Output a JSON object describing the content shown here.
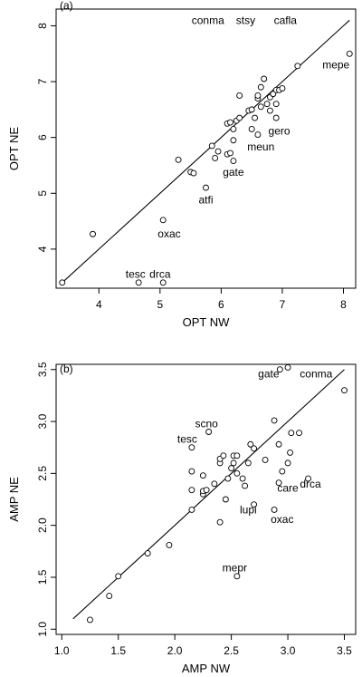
{
  "chart_data": [
    {
      "type": "scatter",
      "panel_label": "(a)",
      "xlabel": "OPT NW",
      "ylabel": "OPT NE",
      "xlim": [
        3.3,
        8.2
      ],
      "ylim": [
        3.3,
        8.3
      ],
      "xticks": [
        4,
        5,
        6,
        7,
        8
      ],
      "yticks": [
        4,
        5,
        6,
        7,
        8
      ],
      "line": {
        "x": [
          3.4,
          8.1
        ],
        "y": [
          3.4,
          8.1
        ]
      },
      "points": [
        {
          "x": 3.4,
          "y": 3.4
        },
        {
          "x": 3.9,
          "y": 4.27
        },
        {
          "x": 4.65,
          "y": 3.4
        },
        {
          "x": 5.05,
          "y": 3.4
        },
        {
          "x": 5.05,
          "y": 4.52
        },
        {
          "x": 5.75,
          "y": 5.1
        },
        {
          "x": 5.3,
          "y": 5.6
        },
        {
          "x": 5.5,
          "y": 5.38
        },
        {
          "x": 5.55,
          "y": 5.36
        },
        {
          "x": 5.85,
          "y": 5.85
        },
        {
          "x": 5.9,
          "y": 5.63
        },
        {
          "x": 5.95,
          "y": 5.75
        },
        {
          "x": 6.1,
          "y": 5.7
        },
        {
          "x": 6.15,
          "y": 5.72
        },
        {
          "x": 6.2,
          "y": 5.58
        },
        {
          "x": 6.2,
          "y": 5.95
        },
        {
          "x": 6.2,
          "y": 6.15
        },
        {
          "x": 6.1,
          "y": 6.25
        },
        {
          "x": 6.15,
          "y": 6.27
        },
        {
          "x": 6.25,
          "y": 6.3
        },
        {
          "x": 6.3,
          "y": 6.75
        },
        {
          "x": 6.3,
          "y": 6.35
        },
        {
          "x": 6.45,
          "y": 6.48
        },
        {
          "x": 6.5,
          "y": 6.5
        },
        {
          "x": 6.55,
          "y": 6.35
        },
        {
          "x": 6.5,
          "y": 6.15
        },
        {
          "x": 6.6,
          "y": 6.05
        },
        {
          "x": 6.65,
          "y": 6.55
        },
        {
          "x": 6.6,
          "y": 6.7
        },
        {
          "x": 6.6,
          "y": 6.75
        },
        {
          "x": 6.65,
          "y": 6.9
        },
        {
          "x": 6.7,
          "y": 7.05
        },
        {
          "x": 6.75,
          "y": 6.6
        },
        {
          "x": 6.8,
          "y": 6.48
        },
        {
          "x": 6.8,
          "y": 6.72
        },
        {
          "x": 6.85,
          "y": 6.78
        },
        {
          "x": 6.9,
          "y": 6.85
        },
        {
          "x": 6.9,
          "y": 6.6
        },
        {
          "x": 6.9,
          "y": 6.35
        },
        {
          "x": 6.95,
          "y": 6.85
        },
        {
          "x": 7.0,
          "y": 6.88
        },
        {
          "x": 7.25,
          "y": 7.28
        },
        {
          "x": 8.1,
          "y": 7.5
        }
      ],
      "annotations": [
        {
          "text": "conma",
          "x": 6.05,
          "y": 8.1,
          "anchor": "end"
        },
        {
          "text": "stsy",
          "x": 6.4,
          "y": 8.1,
          "anchor": "middle"
        },
        {
          "text": "cafla",
          "x": 7.05,
          "y": 8.1,
          "anchor": "middle"
        },
        {
          "text": "mepe",
          "x": 8.1,
          "y": 7.3,
          "anchor": "end"
        },
        {
          "text": "gero",
          "x": 6.95,
          "y": 6.12,
          "anchor": "middle"
        },
        {
          "text": "meun",
          "x": 6.65,
          "y": 5.83,
          "anchor": "middle"
        },
        {
          "text": "gate",
          "x": 6.2,
          "y": 5.38,
          "anchor": "middle"
        },
        {
          "text": "atfi",
          "x": 5.75,
          "y": 4.88,
          "anchor": "middle"
        },
        {
          "text": "oxac",
          "x": 5.15,
          "y": 4.27,
          "anchor": "middle"
        },
        {
          "text": "tesc",
          "x": 4.6,
          "y": 3.55,
          "anchor": "middle"
        },
        {
          "text": "drca",
          "x": 5.0,
          "y": 3.55,
          "anchor": "middle"
        }
      ]
    },
    {
      "type": "scatter",
      "panel_label": "(b)",
      "xlabel": "AMP NW",
      "ylabel": "AMP NE",
      "xlim": [
        0.95,
        3.6
      ],
      "ylim": [
        0.95,
        3.55
      ],
      "xticks": [
        1.0,
        1.5,
        2.0,
        2.5,
        3.0,
        3.5
      ],
      "xtick_labels": [
        "1.0",
        "1.5",
        "2.0",
        "2.5",
        "3.0",
        "3.5"
      ],
      "yticks": [
        1.0,
        1.5,
        2.0,
        2.5,
        3.0,
        3.5
      ],
      "ytick_labels": [
        "1.0",
        "1.5",
        "2.0",
        "2.5",
        "3.0",
        "3.5"
      ],
      "line": {
        "x": [
          1.1,
          3.5
        ],
        "y": [
          1.1,
          3.5
        ]
      },
      "points": [
        {
          "x": 1.25,
          "y": 1.09
        },
        {
          "x": 1.42,
          "y": 1.32
        },
        {
          "x": 1.5,
          "y": 1.51
        },
        {
          "x": 1.76,
          "y": 1.73
        },
        {
          "x": 1.95,
          "y": 1.81
        },
        {
          "x": 2.15,
          "y": 2.15
        },
        {
          "x": 2.15,
          "y": 2.34
        },
        {
          "x": 2.15,
          "y": 2.52
        },
        {
          "x": 2.15,
          "y": 2.75
        },
        {
          "x": 2.25,
          "y": 2.3
        },
        {
          "x": 2.25,
          "y": 2.33
        },
        {
          "x": 2.28,
          "y": 2.34
        },
        {
          "x": 2.25,
          "y": 2.48
        },
        {
          "x": 2.3,
          "y": 2.9
        },
        {
          "x": 2.35,
          "y": 2.4
        },
        {
          "x": 2.4,
          "y": 2.03
        },
        {
          "x": 2.4,
          "y": 2.6
        },
        {
          "x": 2.4,
          "y": 2.64
        },
        {
          "x": 2.43,
          "y": 2.67
        },
        {
          "x": 2.45,
          "y": 2.25
        },
        {
          "x": 2.47,
          "y": 2.45
        },
        {
          "x": 2.5,
          "y": 2.55
        },
        {
          "x": 2.52,
          "y": 2.6
        },
        {
          "x": 2.52,
          "y": 2.67
        },
        {
          "x": 2.55,
          "y": 2.67
        },
        {
          "x": 2.55,
          "y": 2.5
        },
        {
          "x": 2.6,
          "y": 2.45
        },
        {
          "x": 2.62,
          "y": 2.38
        },
        {
          "x": 2.65,
          "y": 2.6
        },
        {
          "x": 2.67,
          "y": 2.78
        },
        {
          "x": 2.7,
          "y": 2.2
        },
        {
          "x": 2.7,
          "y": 2.74
        },
        {
          "x": 2.8,
          "y": 2.63
        },
        {
          "x": 2.88,
          "y": 3.01
        },
        {
          "x": 2.88,
          "y": 2.15
        },
        {
          "x": 2.92,
          "y": 2.41
        },
        {
          "x": 2.92,
          "y": 2.78
        },
        {
          "x": 2.95,
          "y": 2.52
        },
        {
          "x": 3.0,
          "y": 2.6
        },
        {
          "x": 3.02,
          "y": 2.7
        },
        {
          "x": 3.03,
          "y": 2.89
        },
        {
          "x": 3.1,
          "y": 2.89
        },
        {
          "x": 3.18,
          "y": 2.45
        },
        {
          "x": 2.55,
          "y": 1.51
        },
        {
          "x": 2.93,
          "y": 3.5
        },
        {
          "x": 3.0,
          "y": 3.52
        },
        {
          "x": 3.5,
          "y": 3.3
        }
      ],
      "annotations": [
        {
          "text": "gate",
          "x": 2.83,
          "y": 3.46,
          "anchor": "middle"
        },
        {
          "text": "conma",
          "x": 3.25,
          "y": 3.46,
          "anchor": "middle"
        },
        {
          "text": "scno",
          "x": 2.28,
          "y": 2.98,
          "anchor": "middle"
        },
        {
          "text": "tesc",
          "x": 2.11,
          "y": 2.83,
          "anchor": "middle"
        },
        {
          "text": "care",
          "x": 3.0,
          "y": 2.36,
          "anchor": "middle"
        },
        {
          "text": "drca",
          "x": 3.2,
          "y": 2.4,
          "anchor": "middle"
        },
        {
          "text": "lupi",
          "x": 2.65,
          "y": 2.15,
          "anchor": "middle"
        },
        {
          "text": "oxac",
          "x": 2.95,
          "y": 2.06,
          "anchor": "middle"
        },
        {
          "text": "mepr",
          "x": 2.53,
          "y": 1.59,
          "anchor": "middle"
        }
      ]
    }
  ]
}
